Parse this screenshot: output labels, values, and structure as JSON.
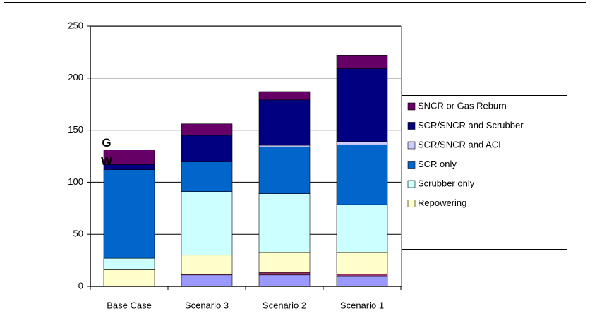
{
  "chart_data": {
    "type": "bar",
    "stacked": true,
    "y_label": "G\nW",
    "categories": [
      "Base Case",
      "Scenario 3",
      "Scenario 2",
      "Scenario 1"
    ],
    "series": [
      {
        "color": "#9999ff",
        "values": [
          0,
          11,
          11,
          9.5
        ]
      },
      {
        "color": "#993366",
        "values": [
          0,
          1,
          2.5,
          2.5
        ]
      },
      {
        "name": "Repowering",
        "color": "#ffffcc",
        "values": [
          16,
          18,
          19,
          20.5
        ]
      },
      {
        "name": "Scrubber only",
        "color": "#ccffff",
        "values": [
          11,
          61,
          56.5,
          46
        ]
      },
      {
        "name": "SCR only",
        "color": "#0066cc",
        "values": [
          85,
          29,
          45,
          57.5
        ]
      },
      {
        "name": "SCR/SNCR and ACI",
        "color": "#ccccff",
        "values": [
          0,
          0,
          1.5,
          3
        ]
      },
      {
        "name": "SCR/SNCR and Scrubber",
        "color": "#000080",
        "values": [
          5,
          25,
          43.5,
          70
        ]
      },
      {
        "name": "SNCR or Gas Reburn",
        "color": "#660066",
        "values": [
          14,
          11,
          8,
          13
        ]
      }
    ],
    "ylim": [
      0,
      250
    ],
    "yticks": [
      0,
      50,
      100,
      150,
      200,
      250
    ],
    "grid": true,
    "legend": "right"
  }
}
